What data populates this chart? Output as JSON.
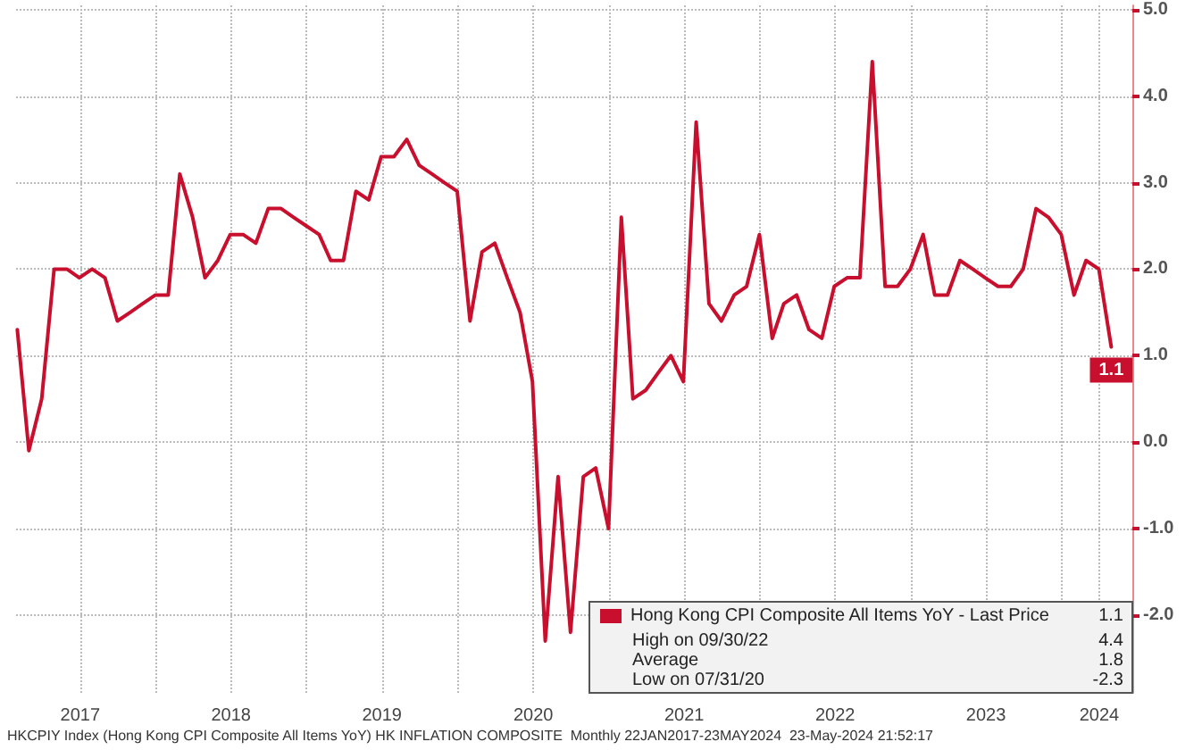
{
  "chart_data": {
    "type": "line",
    "x": [
      "2017-01-31",
      "2017-02-28",
      "2017-03-31",
      "2017-04-30",
      "2017-05-31",
      "2017-06-30",
      "2017-07-31",
      "2017-08-31",
      "2017-09-30",
      "2017-10-31",
      "2017-11-30",
      "2017-12-31",
      "2018-01-31",
      "2018-02-28",
      "2018-03-31",
      "2018-04-30",
      "2018-05-31",
      "2018-06-30",
      "2018-07-31",
      "2018-08-31",
      "2018-09-30",
      "2018-10-31",
      "2018-11-30",
      "2018-12-31",
      "2019-01-31",
      "2019-02-28",
      "2019-03-31",
      "2019-04-30",
      "2019-05-31",
      "2019-06-30",
      "2019-07-31",
      "2019-08-31",
      "2019-09-30",
      "2019-10-31",
      "2019-11-30",
      "2019-12-31",
      "2020-01-31",
      "2020-02-29",
      "2020-03-31",
      "2020-04-30",
      "2020-05-31",
      "2020-06-30",
      "2020-07-31",
      "2020-08-31",
      "2020-09-30",
      "2020-10-31",
      "2020-11-30",
      "2020-12-31",
      "2021-01-31",
      "2021-02-28",
      "2021-03-31",
      "2021-04-30",
      "2021-05-31",
      "2021-06-30",
      "2021-07-31",
      "2021-08-31",
      "2021-09-30",
      "2021-10-31",
      "2021-11-30",
      "2021-12-31",
      "2022-01-31",
      "2022-02-28",
      "2022-03-31",
      "2022-04-30",
      "2022-05-31",
      "2022-06-30",
      "2022-07-31",
      "2022-08-31",
      "2022-09-30",
      "2022-10-31",
      "2022-11-30",
      "2022-12-31",
      "2023-01-31",
      "2023-02-28",
      "2023-03-31",
      "2023-04-30",
      "2023-05-31",
      "2023-06-30",
      "2023-07-31",
      "2023-08-31",
      "2023-09-30",
      "2023-10-31",
      "2023-11-30",
      "2023-12-31",
      "2024-01-31",
      "2024-02-29",
      "2024-03-31",
      "2024-04-30"
    ],
    "series": [
      {
        "name": "Hong Kong CPI Composite All Items YoY - Last Price",
        "color": "#c8102e",
        "values": [
          1.3,
          -0.1,
          0.5,
          2.0,
          2.0,
          1.9,
          2.0,
          1.9,
          1.4,
          1.5,
          1.6,
          1.7,
          1.7,
          3.1,
          2.6,
          1.9,
          2.1,
          2.4,
          2.4,
          2.3,
          2.7,
          2.7,
          2.6,
          2.5,
          2.4,
          2.1,
          2.1,
          2.9,
          2.8,
          3.3,
          3.3,
          3.5,
          3.2,
          3.1,
          3.0,
          2.9,
          1.4,
          2.2,
          2.3,
          1.9,
          1.5,
          0.7,
          -2.3,
          -0.4,
          -2.2,
          -0.4,
          -0.3,
          -1.0,
          2.6,
          0.5,
          0.6,
          0.8,
          1.0,
          0.7,
          3.7,
          1.6,
          1.4,
          1.7,
          1.8,
          2.4,
          1.2,
          1.6,
          1.7,
          1.3,
          1.2,
          1.8,
          1.9,
          1.9,
          4.4,
          1.8,
          1.8,
          2.0,
          2.4,
          1.7,
          1.7,
          2.1,
          2.0,
          1.9,
          1.8,
          1.8,
          2.0,
          2.7,
          2.6,
          2.4,
          1.7,
          2.1,
          2.0,
          1.1
        ],
        "value_labels": [
          null,
          null,
          null,
          null,
          null,
          null,
          null,
          null,
          null,
          null,
          null,
          null,
          null,
          null,
          null,
          null,
          null,
          null,
          null,
          null,
          null,
          null,
          null,
          null,
          null,
          null,
          null,
          null,
          null,
          null,
          null,
          null,
          null,
          null,
          null,
          null,
          null,
          null,
          null,
          null,
          null,
          null,
          null,
          null,
          null,
          null,
          null,
          null,
          null,
          null,
          null,
          null,
          null,
          null,
          null,
          null,
          null,
          null,
          null,
          null,
          null,
          null,
          null,
          null,
          null,
          null,
          null,
          null,
          null,
          null,
          null,
          null,
          null,
          null,
          null,
          null,
          null,
          null,
          null,
          null,
          null,
          null,
          null,
          null,
          null,
          null,
          null,
          "1.1"
        ]
      }
    ],
    "xlim": [
      "2017-01-28",
      "2024-06-20"
    ],
    "xticks": [
      {
        "value": "2017-07-02",
        "label": "2017"
      },
      {
        "value": "2018-01-01",
        "label": null
      },
      {
        "value": "2018-07-02",
        "label": "2018"
      },
      {
        "value": "2019-01-01",
        "label": null
      },
      {
        "value": "2019-07-02",
        "label": "2019"
      },
      {
        "value": "2020-01-01",
        "label": null
      },
      {
        "value": "2020-07-02",
        "label": "2020"
      },
      {
        "value": "2021-01-01",
        "label": null
      },
      {
        "value": "2021-07-02",
        "label": "2021"
      },
      {
        "value": "2022-01-01",
        "label": null
      },
      {
        "value": "2022-07-02",
        "label": "2022"
      },
      {
        "value": "2023-01-01",
        "label": null
      },
      {
        "value": "2023-07-02",
        "label": "2023"
      },
      {
        "value": "2024-01-01",
        "label": null
      },
      {
        "value": "2024-04-01",
        "label": "2024"
      }
    ],
    "ylim": [
      -2.9,
      5.05
    ],
    "yticks": [
      {
        "value": -2,
        "label": "-2.0"
      },
      {
        "value": -1,
        "label": "-1.0"
      },
      {
        "value": 0,
        "label": "0.0"
      },
      {
        "value": 1,
        "label": "1.0"
      },
      {
        "value": 2,
        "label": "2.0"
      },
      {
        "value": 3,
        "label": "3.0"
      },
      {
        "value": 4,
        "label": "4.0"
      },
      {
        "value": 5,
        "label": "5.0"
      }
    ],
    "grid": true,
    "legend": "bottom right",
    "marker": "none",
    "line_style": "solid",
    "annotations": [
      "1.1",
      "High on 09/30/22",
      "4.4",
      "Average",
      "1.8",
      "Low on 07/31/20",
      "-2.3",
      "HKCPIY Index (Hong Kong CPI Composite All Items YoY) HK INFLATION COMPOSITE  Monthly 22JAN2017-23MAY2024  23-May-2024 21:52:17"
    ]
  }
}
